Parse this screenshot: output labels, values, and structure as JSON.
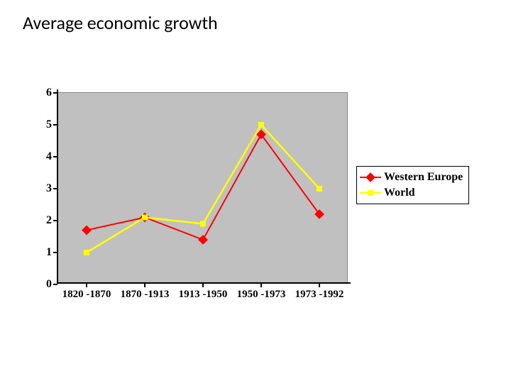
{
  "title": "Average economic growth",
  "chart": {
    "type": "line",
    "background_color": "#ffffff",
    "plot_background": "#c0c0c0",
    "axis_color": "#000000",
    "grid": false,
    "xlabels": [
      "1820 -1870",
      "1870 -1913",
      "1913 -1950",
      "1950 -1973",
      "1973 -1992"
    ],
    "ylim": [
      0,
      6
    ],
    "ytick_step": 1,
    "yticks": [
      0,
      1,
      2,
      3,
      4,
      5,
      6
    ],
    "tick_font": {
      "family": "Times New Roman",
      "size": 15,
      "weight": "bold",
      "color": "#000000"
    },
    "series": [
      {
        "name": "Western Europe",
        "color": "#ff0000",
        "line_width": 2,
        "marker": "diamond",
        "marker_size": 9,
        "values": [
          1.7,
          2.1,
          1.4,
          4.7,
          2.2
        ]
      },
      {
        "name": "World",
        "color": "#ffff00",
        "line_width": 2.5,
        "marker": "square",
        "marker_size": 8,
        "values": [
          1.0,
          2.1,
          1.9,
          5.0,
          3.0
        ]
      }
    ],
    "legend": {
      "border_color": "#000000",
      "background": "#ffffff",
      "font": {
        "family": "Times New Roman",
        "size": 16,
        "weight": "bold"
      }
    }
  }
}
